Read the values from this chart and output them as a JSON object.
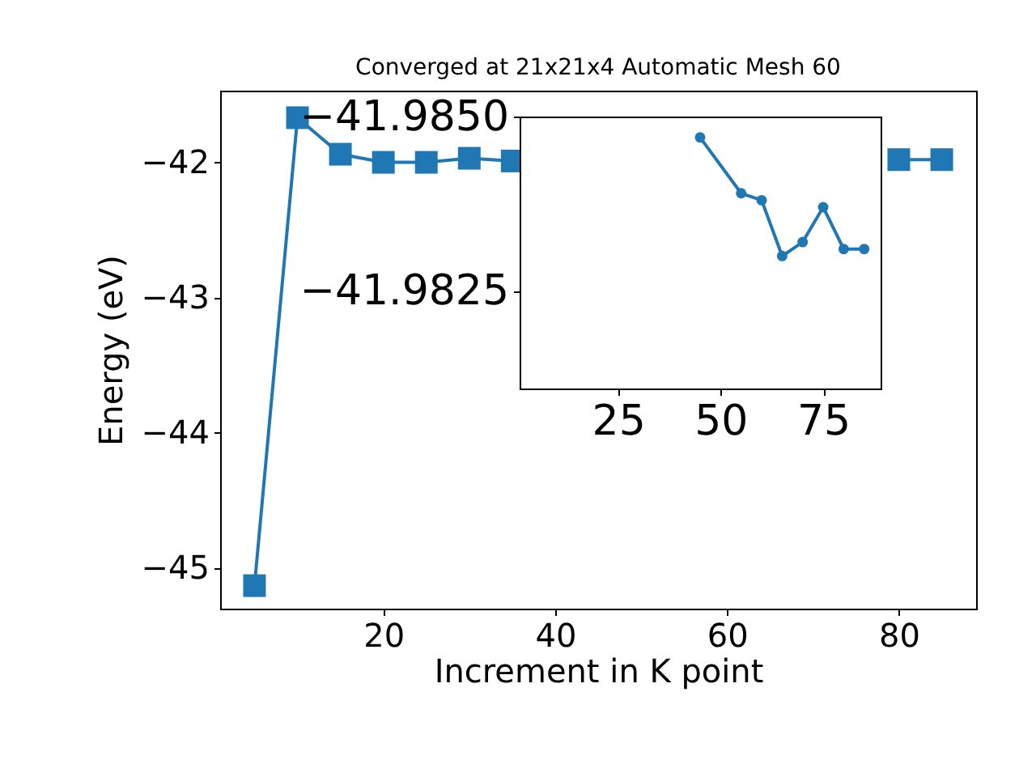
{
  "chart_data": [
    {
      "type": "line",
      "title": "Converged at 21x21x4 Automatic Mesh 60",
      "xlabel": "Increment in K point",
      "ylabel": "Energy (eV)",
      "x": [
        5,
        10,
        15,
        20,
        25,
        30,
        35,
        40,
        45,
        50,
        55,
        60,
        65,
        70,
        75,
        80,
        85
      ],
      "series": [
        {
          "color": "#1f77b4",
          "values": [
            -45.13,
            -41.67,
            -41.94,
            -42.0,
            -42.0,
            -41.97,
            -41.99,
            null,
            null,
            null,
            null,
            null,
            null,
            null,
            null,
            -41.98,
            -41.98
          ]
        }
      ],
      "xlim": [
        1,
        89
      ],
      "ylim": [
        -45.3,
        -41.47
      ],
      "xticks": [
        20,
        40,
        60,
        80
      ],
      "yticks": [
        -45,
        -44,
        -43,
        -42
      ],
      "marker": "square",
      "grid": false
    },
    {
      "type": "line",
      "x": [
        45,
        55,
        60,
        65,
        70,
        75,
        80,
        85
      ],
      "series": [
        {
          "color": "#1f77b4",
          "values": [
            -41.9847,
            -41.9839,
            -41.9838,
            -41.983,
            -41.9832,
            -41.9837,
            -41.9831,
            -41.9831
          ]
        }
      ],
      "xlim": [
        1,
        89
      ],
      "ylim": [
        -41.9811,
        -41.985
      ],
      "xticks": [
        25,
        50,
        75
      ],
      "yticks": [
        {
          "value": -41.985,
          "label": "−41.9850"
        },
        {
          "value": -41.9825,
          "label": "−41.9825"
        }
      ],
      "marker": "circle",
      "grid": false
    }
  ]
}
